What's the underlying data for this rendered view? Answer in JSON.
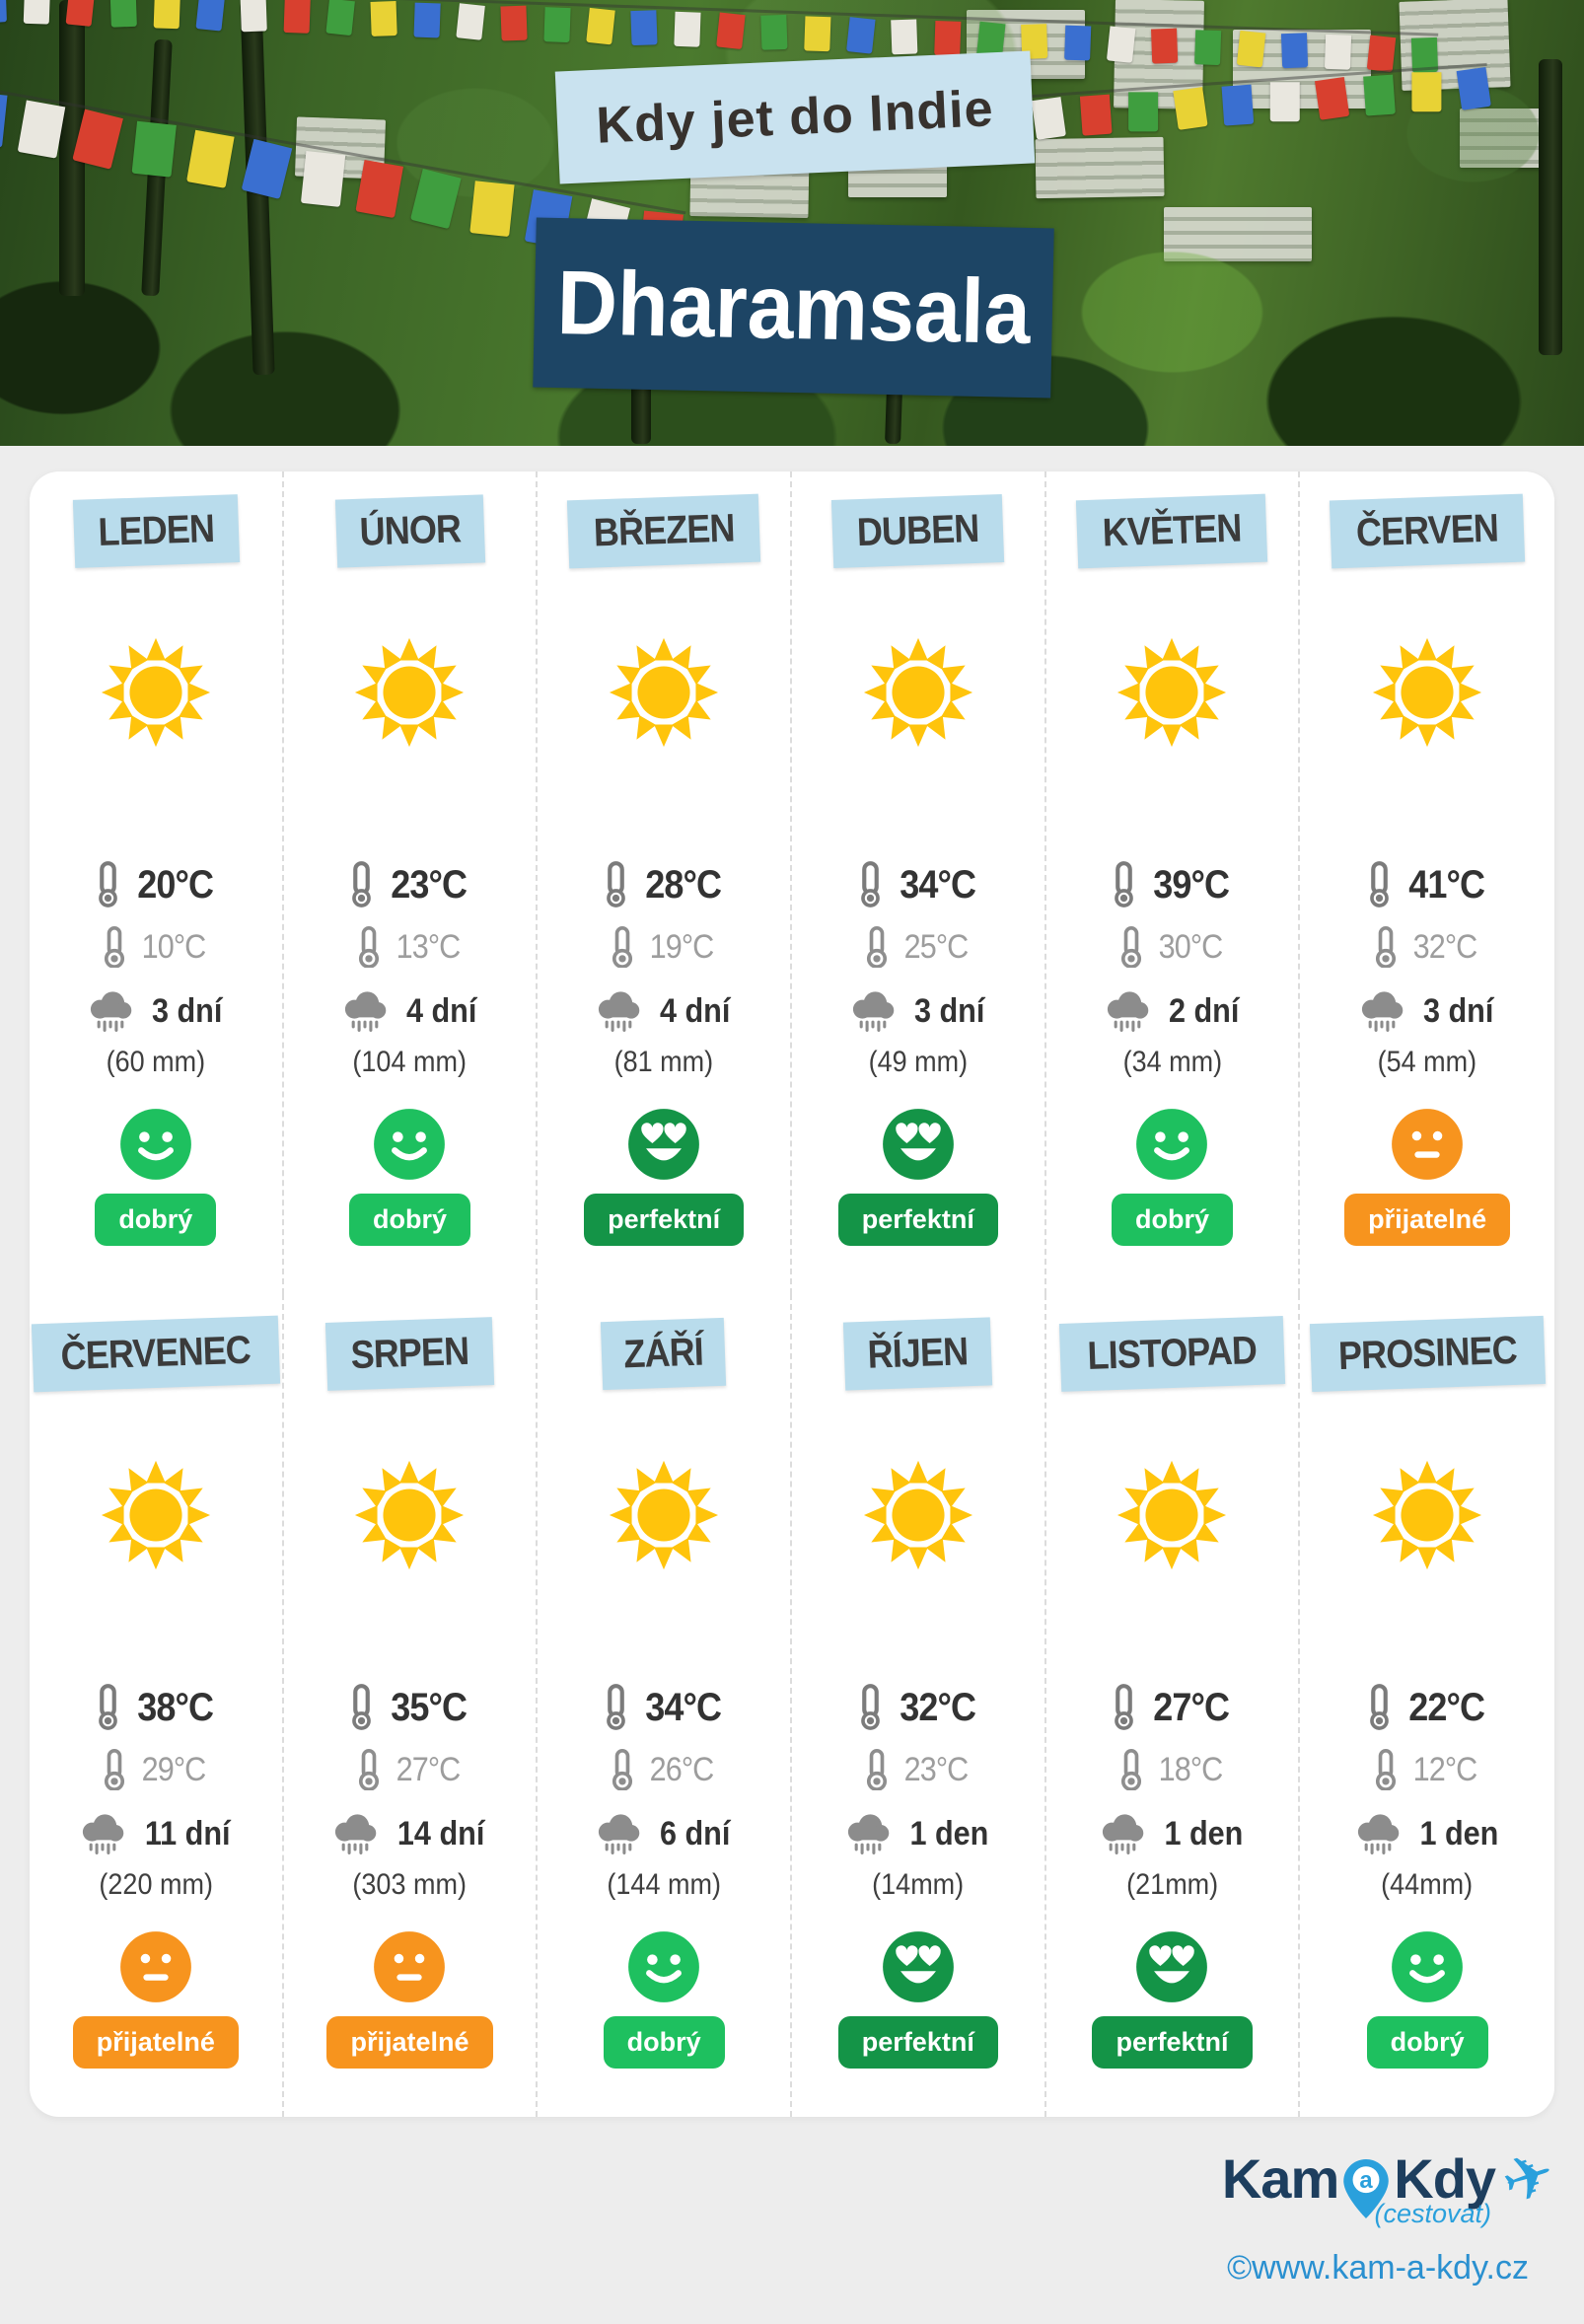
{
  "header": {
    "kicker": "Kdy jet do Indie",
    "title": "Dharamsala",
    "flag_colors": [
      "#3a6fd0",
      "#e9e7df",
      "#d8402f",
      "#3f9e3f",
      "#e8d235"
    ]
  },
  "colors": {
    "kicker_bg": "#c9e2ef",
    "title_bg": "#1d4565",
    "month_label_bg": "#b9dcec",
    "sun": "#ffc40c",
    "rating": {
      "good": "#1ec05f",
      "perfect": "#149447",
      "acceptable": "#f7941e"
    },
    "logo_navy": "#1d3e5e",
    "logo_blue": "#2aa0dc"
  },
  "icons": {
    "airplane": "✈"
  },
  "months": [
    {
      "label": "LEDEN",
      "high": "20°C",
      "low": "10°C",
      "rain_days": "3 dní",
      "precip": "(60 mm)",
      "rating": "dobrý",
      "rating_key": "good"
    },
    {
      "label": "ÚNOR",
      "high": "23°C",
      "low": "13°C",
      "rain_days": "4 dní",
      "precip": "(104 mm)",
      "rating": "dobrý",
      "rating_key": "good"
    },
    {
      "label": "BŘEZEN",
      "high": "28°C",
      "low": "19°C",
      "rain_days": "4 dní",
      "precip": "(81 mm)",
      "rating": "perfektní",
      "rating_key": "perfect"
    },
    {
      "label": "DUBEN",
      "high": "34°C",
      "low": "25°C",
      "rain_days": "3 dní",
      "precip": "(49 mm)",
      "rating": "perfektní",
      "rating_key": "perfect"
    },
    {
      "label": "KVĚTEN",
      "high": "39°C",
      "low": "30°C",
      "rain_days": "2 dní",
      "precip": "(34 mm)",
      "rating": "dobrý",
      "rating_key": "good"
    },
    {
      "label": "ČERVEN",
      "high": "41°C",
      "low": "32°C",
      "rain_days": "3 dní",
      "precip": "(54 mm)",
      "rating": "přijatelné",
      "rating_key": "acceptable"
    },
    {
      "label": "ČERVENEC",
      "high": "38°C",
      "low": "29°C",
      "rain_days": "11 dní",
      "precip": "(220 mm)",
      "rating": "přijatelné",
      "rating_key": "acceptable"
    },
    {
      "label": "SRPEN",
      "high": "35°C",
      "low": "27°C",
      "rain_days": "14 dní",
      "precip": "(303 mm)",
      "rating": "přijatelné",
      "rating_key": "acceptable"
    },
    {
      "label": "ZÁŘÍ",
      "high": "34°C",
      "low": "26°C",
      "rain_days": "6 dní",
      "precip": "(144 mm)",
      "rating": "dobrý",
      "rating_key": "good"
    },
    {
      "label": "ŘÍJEN",
      "high": "32°C",
      "low": "23°C",
      "rain_days": "1 den",
      "precip": "(14mm)",
      "rating": "perfektní",
      "rating_key": "perfect"
    },
    {
      "label": "LISTOPAD",
      "high": "27°C",
      "low": "18°C",
      "rain_days": "1 den",
      "precip": "(21mm)",
      "rating": "perfektní",
      "rating_key": "perfect"
    },
    {
      "label": "PROSINEC",
      "high": "22°C",
      "low": "12°C",
      "rain_days": "1 den",
      "precip": "(44mm)",
      "rating": "dobrý",
      "rating_key": "good"
    }
  ],
  "footer": {
    "kam": "Kam",
    "a": "a",
    "kdy": "Kdy",
    "cestovat": "(cestovat)",
    "copyright": "©www.kam-a-kdy.cz"
  }
}
